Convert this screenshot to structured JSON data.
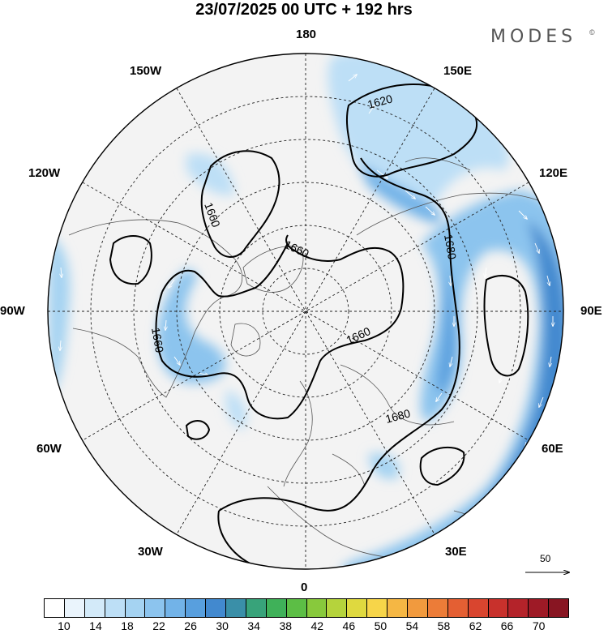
{
  "title": "23/07/2025  00 UTC  + 192 hrs",
  "brand": "MODES",
  "brand_mark": "©",
  "longitude_labels": {
    "lon_180": "180",
    "lon_150e": "150E",
    "lon_120e": "120E",
    "lon_90e": "90E",
    "lon_60e": "60E",
    "lon_30e": "30E",
    "lon_0": "0",
    "lon_30w": "30W",
    "lon_60w": "60W",
    "lon_90w": "90W",
    "lon_120w": "120W",
    "lon_150w": "150W"
  },
  "contour_labels": {
    "c1": "1620",
    "c2": "1660",
    "c3": "1660",
    "c4": "1680",
    "c5": "1660",
    "c6": "1680",
    "c7": "1660"
  },
  "wind_scale": {
    "value": "50"
  },
  "colorbar": {
    "labels": [
      "10",
      "14",
      "18",
      "22",
      "26",
      "30",
      "34",
      "38",
      "42",
      "46",
      "50",
      "54",
      "58",
      "62",
      "66",
      "70"
    ],
    "colors": [
      "#ffffff",
      "#eaf4fc",
      "#d3eaf9",
      "#bddff6",
      "#a5d3f2",
      "#8cc4ee",
      "#72b3e8",
      "#589fde",
      "#4289cf",
      "#3a8fa8",
      "#38a37a",
      "#3fb159",
      "#5cbe45",
      "#88c93c",
      "#b5d33c",
      "#dfd93f",
      "#f7d549",
      "#f5b744",
      "#f19a3e",
      "#ec7c38",
      "#e45f33",
      "#d9452f",
      "#c8312c",
      "#b4232a",
      "#9e1a26",
      "#881522"
    ]
  }
}
